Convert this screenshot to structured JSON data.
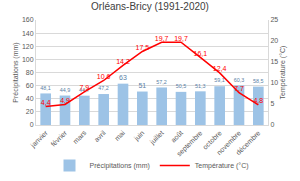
{
  "chart_data": {
    "type": "bar",
    "title": "Orléans-Bricy (1991-2020)",
    "categories": [
      "janvier",
      "février",
      "mars",
      "avril",
      "mai",
      "juin",
      "juillet",
      "août",
      "septembre",
      "octobre",
      "novembre",
      "décembre"
    ],
    "series": [
      {
        "name": "Précipitations (mm)",
        "type": "bar",
        "color": "#9dc3e6",
        "values": [
          48.1,
          44.9,
          44.7,
          47.2,
          63,
          51,
          57.2,
          50.5,
          51.3,
          59.1,
          60.3,
          58.5
        ],
        "value_labels": [
          "48,1",
          "44,9",
          "44,7",
          "47,2",
          "63",
          "51",
          "57,2",
          "50,5",
          "51,3",
          "59,1",
          "60,3",
          "58,5"
        ]
      },
      {
        "name": "Température (°C)",
        "type": "line",
        "axis": "y2",
        "color": "#ff0000",
        "values": [
          4.4,
          4.9,
          7.9,
          10.6,
          14.2,
          17.5,
          19.7,
          19.7,
          16.1,
          12.4,
          7.7,
          4.8
        ],
        "value_labels": [
          "4,4",
          "4,9",
          "7,9",
          "10,6",
          "14,2",
          "17,5",
          "19,7",
          "19,7",
          "16,1",
          "12,4",
          "7,7",
          "4,8"
        ]
      }
    ],
    "ylabel": "Précipitations (mm)",
    "y2label": "Température (°C)",
    "ylim": [
      0,
      160
    ],
    "yticks": [
      0,
      20,
      40,
      60,
      80,
      100,
      120,
      140,
      160
    ],
    "y2lim": [
      0,
      25
    ],
    "y2ticks": [
      0,
      5,
      10,
      15,
      20,
      25
    ],
    "grid": true,
    "legend": "bottom",
    "data_labels": true
  }
}
